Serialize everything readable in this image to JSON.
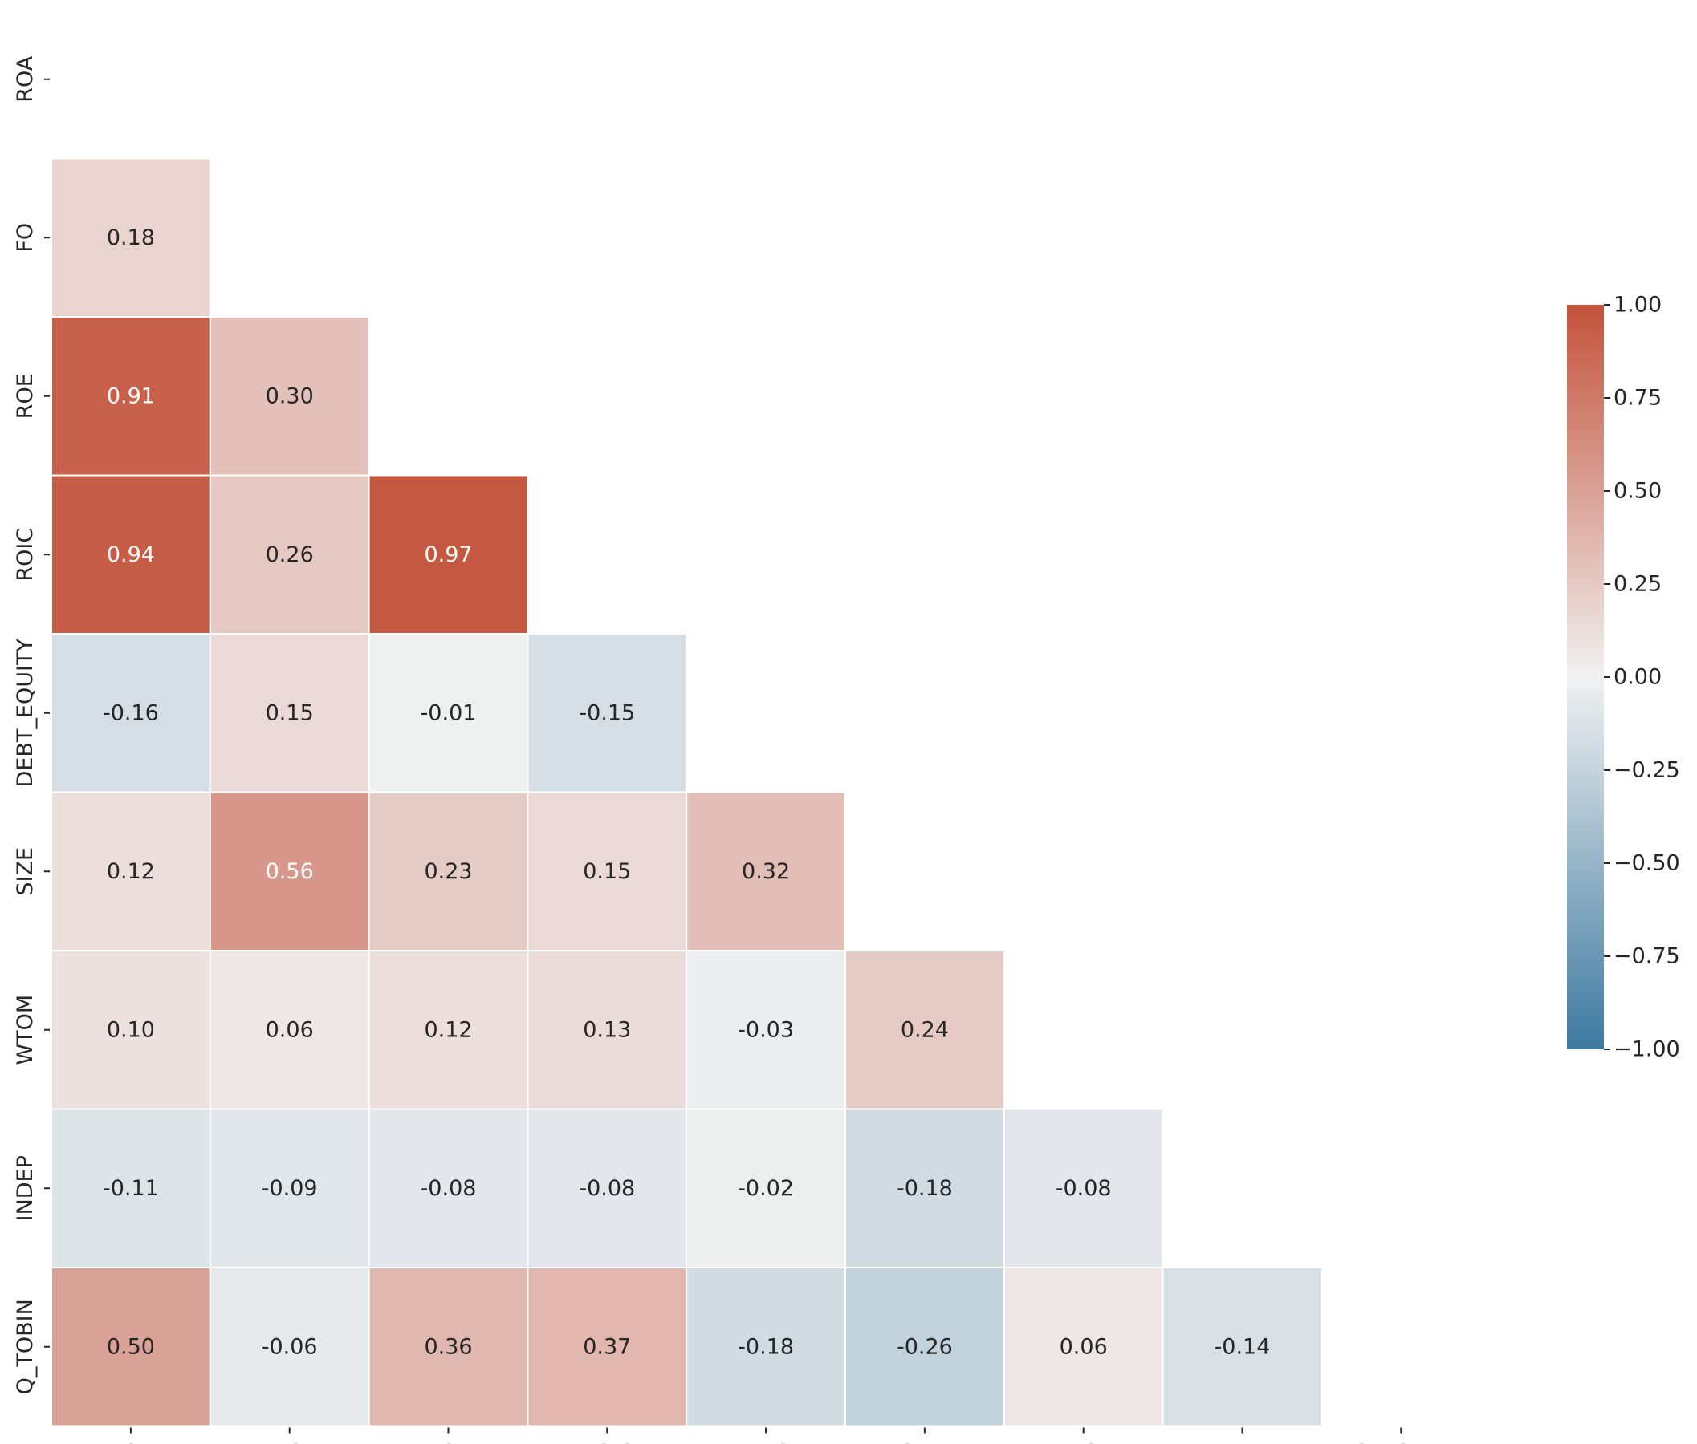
{
  "chart_data": {
    "type": "heatmap",
    "title": "",
    "subtitle": "",
    "xlabel": "",
    "ylabel": "",
    "variables": [
      "ROA",
      "FO",
      "ROE",
      "ROIC",
      "DEBT_EQUITY",
      "SIZE",
      "WTOM",
      "INDEP",
      "Q_TOBIN"
    ],
    "mask": "upper-triangle-including-diagonal",
    "values": [
      [
        null,
        null,
        null,
        null,
        null,
        null,
        null,
        null,
        null
      ],
      [
        0.18,
        null,
        null,
        null,
        null,
        null,
        null,
        null,
        null
      ],
      [
        0.91,
        0.3,
        null,
        null,
        null,
        null,
        null,
        null,
        null
      ],
      [
        0.94,
        0.26,
        0.97,
        null,
        null,
        null,
        null,
        null,
        null
      ],
      [
        -0.16,
        0.15,
        -0.01,
        -0.15,
        null,
        null,
        null,
        null,
        null
      ],
      [
        0.12,
        0.56,
        0.23,
        0.15,
        0.32,
        null,
        null,
        null,
        null
      ],
      [
        0.1,
        0.06,
        0.12,
        0.13,
        -0.03,
        0.24,
        null,
        null,
        null
      ],
      [
        -0.11,
        -0.09,
        -0.08,
        -0.08,
        -0.02,
        -0.18,
        -0.08,
        null,
        null
      ],
      [
        0.5,
        -0.06,
        0.36,
        0.37,
        -0.18,
        -0.26,
        0.06,
        -0.14,
        null
      ]
    ],
    "cell_labels": [
      [],
      [
        "0.18"
      ],
      [
        "0.91",
        "0.30"
      ],
      [
        "0.94",
        "0.26",
        "0.97"
      ],
      [
        "-0.16",
        "0.15",
        "-0.01",
        "-0.15"
      ],
      [
        "0.12",
        "0.56",
        "0.23",
        "0.15",
        "0.32"
      ],
      [
        "0.10",
        "0.06",
        "0.12",
        "0.13",
        "-0.03",
        "0.24"
      ],
      [
        "-0.11",
        "-0.09",
        "-0.08",
        "-0.08",
        "-0.02",
        "-0.18",
        "-0.08"
      ],
      [
        "0.50",
        "-0.06",
        "0.36",
        "0.37",
        "-0.18",
        "-0.26",
        "0.06",
        "-0.14"
      ]
    ],
    "vmin": -1.0,
    "vmax": 1.0,
    "colormap": {
      "negative_end": "#3c79a0",
      "center": "#f1f1f1",
      "positive_end": "#c3523a"
    },
    "colorbar": {
      "placement": "right",
      "ticks": [
        1.0,
        0.75,
        0.5,
        0.25,
        0.0,
        -0.25,
        -0.5,
        -0.75,
        -1.0
      ],
      "tick_labels": [
        "1.00",
        "0.75",
        "0.50",
        "0.25",
        "0.00",
        "−0.25",
        "−0.50",
        "−0.75",
        "−1.00"
      ]
    },
    "grid": false,
    "cell_border_color": "#ffffff"
  }
}
